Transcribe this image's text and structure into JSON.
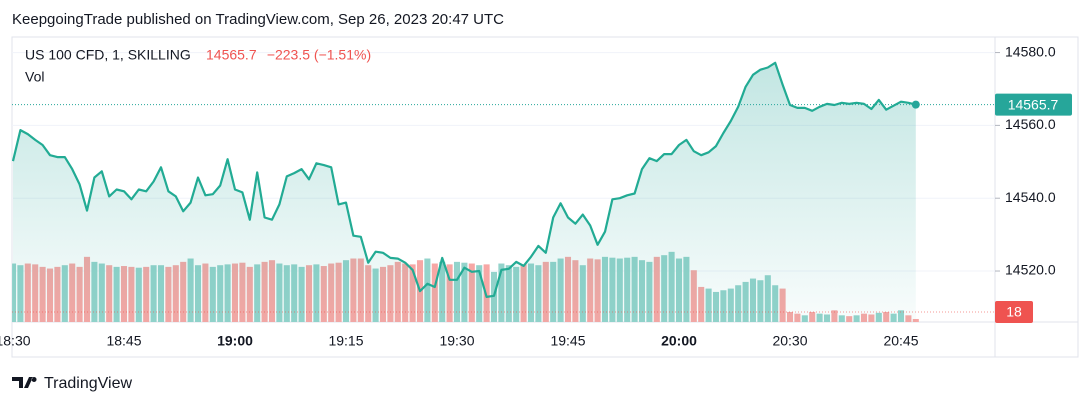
{
  "header": {
    "attribution": "KeepgoingTrade published on TradingView.com, Sep 26, 2023 20:47 UTC"
  },
  "footer": {
    "brand": "TradingView"
  },
  "chart_data": {
    "type": "line",
    "change_label": "−223.5 (−1.51%)",
    "categories": [
      "18:30",
      null,
      null,
      null,
      null,
      null,
      null,
      null,
      null,
      null,
      null,
      null,
      null,
      null,
      null,
      "18:45",
      null,
      null,
      null,
      null,
      null,
      null,
      null,
      null,
      null,
      null,
      null,
      null,
      null,
      null,
      "19:00",
      null,
      null,
      null,
      null,
      null,
      null,
      null,
      null,
      null,
      null,
      null,
      null,
      null,
      null,
      "19:15",
      null,
      null,
      null,
      null,
      null,
      null,
      null,
      null,
      null,
      null,
      null,
      null,
      null,
      null,
      "19:30",
      null,
      null,
      null,
      null,
      null,
      null,
      null,
      null,
      null,
      null,
      null,
      null,
      null,
      null,
      "19:45",
      null,
      null,
      null,
      null,
      null,
      null,
      null,
      null,
      null,
      null,
      null,
      null,
      null,
      null,
      "20:00",
      null,
      null,
      null,
      null,
      null,
      null,
      null,
      null,
      null,
      null,
      null,
      null,
      null,
      null,
      "20:30",
      null,
      null,
      null,
      null,
      null,
      null,
      null,
      null,
      null,
      null,
      null,
      null,
      null,
      null,
      "20:45",
      null,
      null
    ],
    "series": [
      {
        "name": "US 100 CFD, 1, SKILLING",
        "color": "#22ab94",
        "values": [
          14550.2,
          14558.7,
          14557.6,
          14556,
          14554.6,
          14551.8,
          14551.3,
          14551.3,
          14548,
          14543.8,
          14536.6,
          14545.7,
          14547.4,
          14540.5,
          14542.4,
          14541.9,
          14539.7,
          14542.4,
          14541.9,
          14544.6,
          14548.5,
          14541.9,
          14540.5,
          14536.4,
          14538.8,
          14545.7,
          14540.8,
          14541.1,
          14543.5,
          14550.7,
          14542.4,
          14541.6,
          14534.1,
          14547.1,
          14534.7,
          14534.1,
          14538.3,
          14546,
          14546.9,
          14548,
          14545.2,
          14549.6,
          14549.1,
          14548.5,
          14538.3,
          14538.8,
          14529.7,
          14529.4,
          14522.3,
          14525.3,
          14525,
          14523.6,
          14523.4,
          14522.3,
          14520.3,
          14514.5,
          14516.5,
          14515.6,
          14523.6,
          14517.6,
          14517.6,
          14520.9,
          14519.8,
          14520,
          14512.9,
          14513.2,
          14520.3,
          14520.6,
          14522.5,
          14521.4,
          14523.9,
          14526.9,
          14525,
          14534.7,
          14538.6,
          14534.7,
          14533,
          14535.5,
          14532.5,
          14527.2,
          14530.8,
          14539.7,
          14540,
          14540.8,
          14541.3,
          14548,
          14551,
          14550.2,
          14552.1,
          14552.1,
          14554.6,
          14556,
          14552.9,
          14551.8,
          14552.6,
          14554.3,
          14557.9,
          14561.2,
          14565.1,
          14570.6,
          14573.9,
          14575.3,
          14575.9,
          14577.2,
          14571.2,
          14565.6,
          14564.8,
          14564.8,
          14564,
          14565.1,
          14565.9,
          14565.6,
          14566.2,
          14565.9,
          14566.2,
          14565.9,
          14564.5,
          14567,
          14564.3,
          14565.4,
          14566.5,
          14566.2,
          14565.7
        ]
      },
      {
        "name": "Vol",
        "type": "bar",
        "axis": "y2",
        "up_color": "#93d3cb",
        "down_color": "#f7a7a5",
        "values": [
          350,
          340,
          350,
          345,
          330,
          320,
          330,
          340,
          350,
          330,
          390,
          360,
          350,
          340,
          330,
          335,
          330,
          325,
          330,
          340,
          340,
          330,
          340,
          360,
          380,
          340,
          350,
          330,
          340,
          345,
          350,
          355,
          330,
          345,
          360,
          370,
          350,
          340,
          345,
          330,
          340,
          345,
          335,
          350,
          355,
          370,
          380,
          380,
          340,
          320,
          330,
          340,
          360,
          350,
          345,
          370,
          380,
          350,
          360,
          345,
          360,
          355,
          350,
          340,
          345,
          300,
          350,
          340,
          330,
          345,
          350,
          340,
          360,
          360,
          380,
          390,
          370,
          340,
          380,
          375,
          390,
          385,
          380,
          385,
          390,
          370,
          360,
          390,
          400,
          420,
          380,
          390,
          310,
          210,
          200,
          180,
          190,
          200,
          220,
          240,
          260,
          250,
          280,
          220,
          200,
          60,
          50,
          40,
          60,
          50,
          45,
          70,
          40,
          35,
          40,
          50,
          45,
          55,
          60,
          50,
          70,
          40,
          18
        ]
      }
    ],
    "ylim": [
      14506,
      14584
    ],
    "yticks": [
      {
        "value": 14520,
        "label": "14520.0"
      },
      {
        "value": 14540,
        "label": "14540.0"
      },
      {
        "value": 14560,
        "label": "14560.0"
      },
      {
        "value": 14580,
        "label": "14580.0"
      }
    ],
    "y2lim": [
      0,
      1700
    ],
    "grid": true,
    "last_color": "#26a69a",
    "down_color": "#ef5350"
  }
}
